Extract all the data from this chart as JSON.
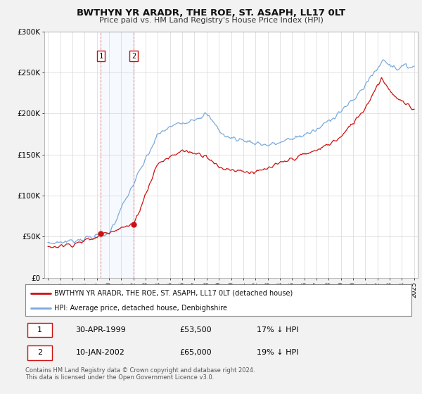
{
  "title": "BWTHYN YR ARADR, THE ROE, ST. ASAPH, LL17 0LT",
  "subtitle": "Price paid vs. HM Land Registry's House Price Index (HPI)",
  "background_color": "#f2f2f2",
  "plot_bg_color": "#ffffff",
  "x_start_year": 1995,
  "x_end_year": 2025,
  "y_min": 0,
  "y_max": 300000,
  "y_ticks": [
    0,
    50000,
    100000,
    150000,
    200000,
    250000,
    300000
  ],
  "y_tick_labels": [
    "£0",
    "£50K",
    "£100K",
    "£150K",
    "£200K",
    "£250K",
    "£300K"
  ],
  "hpi_color": "#7aaadd",
  "price_color": "#cc1111",
  "sale1_date": "30-APR-1999",
  "sale1_price": 53500,
  "sale1_year": 1999.33,
  "sale1_pct": "17%",
  "sale2_date": "10-JAN-2002",
  "sale2_price": 65000,
  "sale2_year": 2002.03,
  "sale2_pct": "19%",
  "legend_label_price": "BWTHYN YR ARADR, THE ROE, ST. ASAPH, LL17 0LT (detached house)",
  "legend_label_hpi": "HPI: Average price, detached house, Denbighshire",
  "footer": "Contains HM Land Registry data © Crown copyright and database right 2024.\nThis data is licensed under the Open Government Licence v3.0."
}
